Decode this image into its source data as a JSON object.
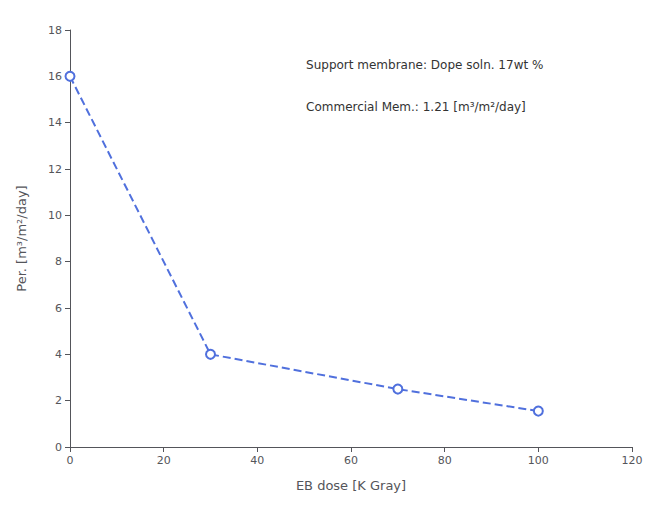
{
  "chart_data": {
    "type": "line",
    "x": [
      0,
      30,
      70,
      100
    ],
    "values": [
      16.0,
      4.0,
      2.5,
      1.55
    ],
    "xlabel": "EB dose [K Gray]",
    "ylabel": "Per. [m³/m²/day]",
    "xlim": [
      0,
      120
    ],
    "ylim": [
      0,
      18
    ],
    "xticks": [
      0,
      20,
      40,
      60,
      80,
      100,
      120
    ],
    "yticks": [
      0,
      2,
      4,
      6,
      8,
      10,
      12,
      14,
      16,
      18
    ],
    "annotations": [
      "Support membrane: Dope soln. 17wt %",
      "Commercial Mem.: 1.21 [m³/m²/day]"
    ],
    "grid": false,
    "marker": "circle",
    "line_style": "dashed"
  }
}
